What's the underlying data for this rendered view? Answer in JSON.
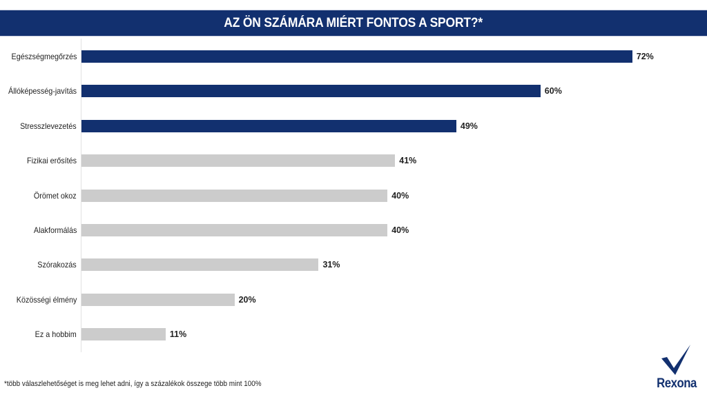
{
  "header": {
    "title": "AZ ÖN SZÁMÁRA MIÉRT FONTOS A SPORT?*"
  },
  "footnote": "*több válaszlehetőséget is meg lehet adni, így a százalékok összege több mint 100%",
  "logo": {
    "text": "Rexona",
    "icon": "checkmark-icon"
  },
  "colors": {
    "highlight": "#12306f",
    "default": "#cccccc",
    "header_bg": "#12306f"
  },
  "chart_data": {
    "type": "bar",
    "orientation": "horizontal",
    "title": "AZ ÖN SZÁMÁRA MIÉRT FONTOS A SPORT?*",
    "xlabel": "",
    "ylabel": "",
    "categories": [
      "Egészségmegőrzés",
      "Állóképesség-javítás",
      "Stresszlevezetés",
      "Fizikai erősítés",
      "Örömet okoz",
      "Alakformálás",
      "Szórakozás",
      "Közösségi élmény",
      "Ez a hobbim"
    ],
    "values": [
      72,
      60,
      49,
      41,
      40,
      40,
      31,
      20,
      11
    ],
    "value_labels": [
      "72%",
      "60%",
      "49%",
      "41%",
      "40%",
      "40%",
      "31%",
      "20%",
      "11%"
    ],
    "highlighted": [
      true,
      true,
      true,
      false,
      false,
      false,
      false,
      false,
      false
    ],
    "unit": "%",
    "xlim": [
      0,
      80
    ],
    "grid": false,
    "legend": null
  }
}
